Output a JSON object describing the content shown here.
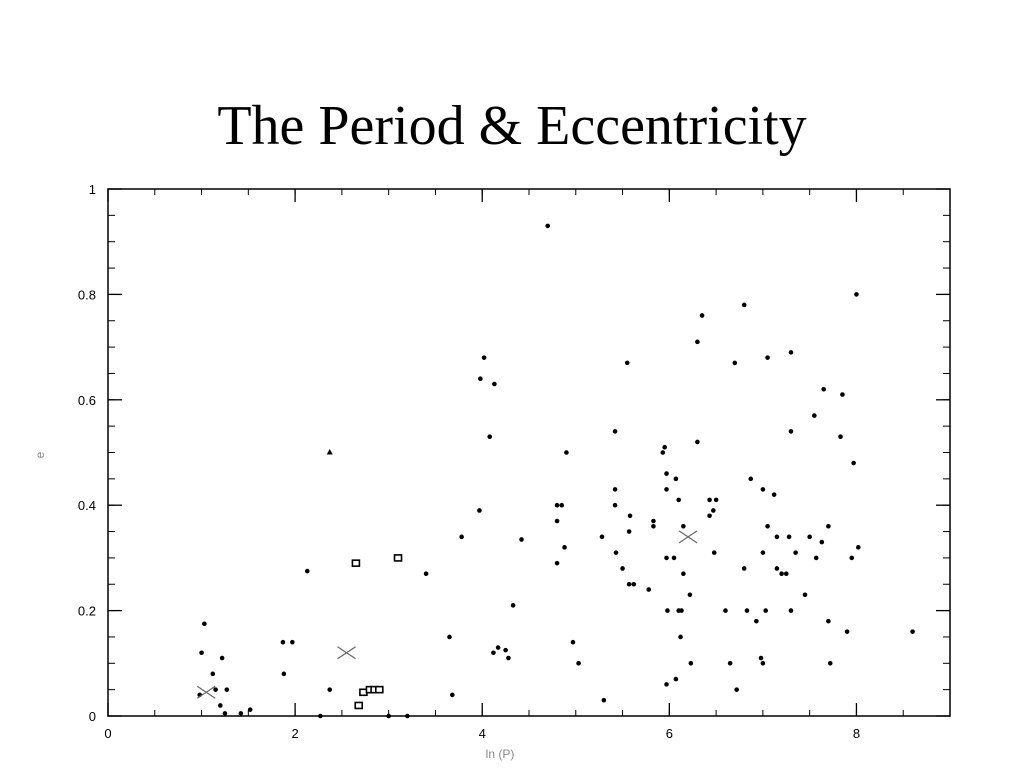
{
  "slide": {
    "title": "The Period & Eccentricity"
  },
  "chart_data": {
    "type": "scatter",
    "title": "The Period & Eccentricity",
    "xlabel": "ln (P)",
    "ylabel": "e",
    "xlim": [
      0,
      9
    ],
    "ylim": [
      0,
      1
    ],
    "x_ticks": [
      0,
      2,
      4,
      6,
      8
    ],
    "y_ticks": [
      0,
      0.2,
      0.4,
      0.6,
      0.8,
      1
    ],
    "x_tick_labels": [
      "0",
      "2",
      "4",
      "6",
      "8"
    ],
    "y_tick_labels": [
      "0",
      "0.2",
      "0.4",
      "0.6",
      "0.8",
      "1"
    ],
    "grid": false,
    "series": [
      {
        "marker": "dot",
        "points": [
          [
            4.7,
            0.93
          ],
          [
            8.0,
            0.8
          ],
          [
            6.8,
            0.78
          ],
          [
            6.35,
            0.76
          ],
          [
            6.3,
            0.71
          ],
          [
            4.02,
            0.68
          ],
          [
            7.3,
            0.69
          ],
          [
            7.05,
            0.68
          ],
          [
            5.55,
            0.67
          ],
          [
            6.7,
            0.67
          ],
          [
            3.98,
            0.64
          ],
          [
            4.13,
            0.63
          ],
          [
            7.65,
            0.62
          ],
          [
            7.85,
            0.61
          ],
          [
            7.55,
            0.57
          ],
          [
            5.42,
            0.54
          ],
          [
            7.3,
            0.54
          ],
          [
            4.08,
            0.53
          ],
          [
            7.83,
            0.53
          ],
          [
            6.3,
            0.52
          ],
          [
            5.95,
            0.51
          ],
          [
            4.9,
            0.5
          ],
          [
            5.93,
            0.5
          ],
          [
            7.97,
            0.48
          ],
          [
            5.97,
            0.46
          ],
          [
            6.07,
            0.45
          ],
          [
            6.87,
            0.45
          ],
          [
            5.42,
            0.43
          ],
          [
            5.97,
            0.43
          ],
          [
            7.0,
            0.43
          ],
          [
            7.12,
            0.42
          ],
          [
            6.1,
            0.41
          ],
          [
            6.43,
            0.41
          ],
          [
            6.5,
            0.41
          ],
          [
            3.97,
            0.39
          ],
          [
            4.8,
            0.4
          ],
          [
            4.85,
            0.4
          ],
          [
            5.42,
            0.4
          ],
          [
            6.47,
            0.39
          ],
          [
            6.43,
            0.38
          ],
          [
            5.58,
            0.38
          ],
          [
            4.8,
            0.37
          ],
          [
            5.83,
            0.37
          ],
          [
            5.83,
            0.36
          ],
          [
            7.05,
            0.36
          ],
          [
            7.7,
            0.36
          ],
          [
            6.15,
            0.36
          ],
          [
            3.78,
            0.34
          ],
          [
            7.15,
            0.34
          ],
          [
            7.28,
            0.34
          ],
          [
            7.5,
            0.34
          ],
          [
            4.42,
            0.335
          ],
          [
            5.28,
            0.34
          ],
          [
            5.57,
            0.35
          ],
          [
            7.63,
            0.33
          ],
          [
            4.88,
            0.32
          ],
          [
            7.35,
            0.31
          ],
          [
            8.02,
            0.32
          ],
          [
            5.43,
            0.31
          ],
          [
            6.48,
            0.31
          ],
          [
            7.0,
            0.31
          ],
          [
            5.97,
            0.3
          ],
          [
            6.05,
            0.3
          ],
          [
            7.57,
            0.3
          ],
          [
            7.95,
            0.3
          ],
          [
            4.8,
            0.29
          ],
          [
            5.5,
            0.28
          ],
          [
            6.8,
            0.28
          ],
          [
            7.15,
            0.28
          ],
          [
            2.13,
            0.275
          ],
          [
            3.4,
            0.27
          ],
          [
            6.15,
            0.27
          ],
          [
            7.2,
            0.27
          ],
          [
            7.25,
            0.27
          ],
          [
            5.57,
            0.25
          ],
          [
            5.62,
            0.25
          ],
          [
            5.78,
            0.24
          ],
          [
            6.22,
            0.23
          ],
          [
            7.45,
            0.23
          ],
          [
            4.33,
            0.21
          ],
          [
            5.98,
            0.2
          ],
          [
            6.1,
            0.2
          ],
          [
            6.13,
            0.2
          ],
          [
            6.6,
            0.2
          ],
          [
            6.83,
            0.2
          ],
          [
            7.03,
            0.2
          ],
          [
            7.3,
            0.2
          ],
          [
            6.93,
            0.18
          ],
          [
            7.7,
            0.18
          ],
          [
            1.03,
            0.175
          ],
          [
            7.9,
            0.16
          ],
          [
            8.6,
            0.16
          ],
          [
            3.65,
            0.15
          ],
          [
            6.12,
            0.15
          ],
          [
            1.87,
            0.14
          ],
          [
            1.97,
            0.14
          ],
          [
            4.97,
            0.14
          ],
          [
            1.0,
            0.12
          ],
          [
            4.17,
            0.13
          ],
          [
            4.25,
            0.125
          ],
          [
            4.12,
            0.12
          ],
          [
            4.28,
            0.11
          ],
          [
            1.22,
            0.11
          ],
          [
            5.03,
            0.1
          ],
          [
            6.23,
            0.1
          ],
          [
            6.65,
            0.1
          ],
          [
            7.0,
            0.1
          ],
          [
            7.72,
            0.1
          ],
          [
            6.98,
            0.11
          ],
          [
            1.88,
            0.08
          ],
          [
            1.12,
            0.08
          ],
          [
            6.07,
            0.07
          ],
          [
            5.97,
            0.06
          ],
          [
            2.37,
            0.05
          ],
          [
            6.72,
            0.05
          ],
          [
            1.15,
            0.05
          ],
          [
            1.27,
            0.05
          ],
          [
            3.68,
            0.04
          ],
          [
            0.98,
            0.04
          ],
          [
            5.3,
            0.03
          ],
          [
            1.2,
            0.02
          ],
          [
            1.25,
            0.005
          ],
          [
            1.42,
            0.005
          ],
          [
            1.52,
            0.012
          ],
          [
            2.27,
            0.0
          ],
          [
            3.0,
            0.0
          ],
          [
            3.2,
            0.0
          ]
        ]
      },
      {
        "marker": "triangle",
        "points": [
          [
            2.37,
            0.5
          ]
        ]
      },
      {
        "marker": "square",
        "points": [
          [
            2.65,
            0.29
          ],
          [
            3.1,
            0.3
          ],
          [
            2.68,
            0.02
          ],
          [
            2.73,
            0.045
          ],
          [
            2.8,
            0.05
          ],
          [
            2.85,
            0.05
          ],
          [
            2.9,
            0.05
          ]
        ]
      },
      {
        "marker": "cross",
        "points": [
          [
            2.55,
            0.12
          ],
          [
            6.2,
            0.34
          ],
          [
            1.05,
            0.045
          ]
        ]
      }
    ]
  }
}
